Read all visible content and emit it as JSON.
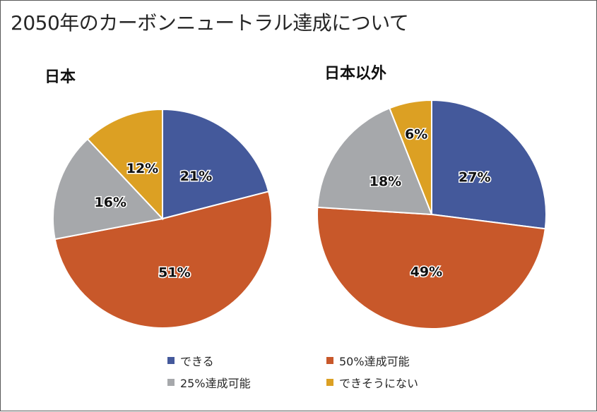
{
  "title": "2050年のカーボンニュートラル達成について",
  "colors": {
    "can": "#44599b",
    "half": "#c8582a",
    "quarter": "#a6a8ab",
    "cannot": "#dca023"
  },
  "legend": [
    {
      "key": "can",
      "label": "できる"
    },
    {
      "key": "half",
      "label": "50%達成可能"
    },
    {
      "key": "quarter",
      "label": "25%達成可能"
    },
    {
      "key": "cannot",
      "label": "できそうにない"
    }
  ],
  "chart_data": [
    {
      "type": "pie",
      "title": "日本",
      "categories": [
        "できる",
        "50%達成可能",
        "25%達成可能",
        "できそうにない"
      ],
      "values": [
        21,
        51,
        16,
        12
      ],
      "labels": [
        "21%",
        "51%",
        "16%",
        "12%"
      ]
    },
    {
      "type": "pie",
      "title": "日本以外",
      "categories": [
        "できる",
        "50%達成可能",
        "25%達成可能",
        "できそうにない"
      ],
      "values": [
        27,
        49,
        18,
        6
      ],
      "labels": [
        "27%",
        "49%",
        "18%",
        "6%"
      ]
    }
  ]
}
